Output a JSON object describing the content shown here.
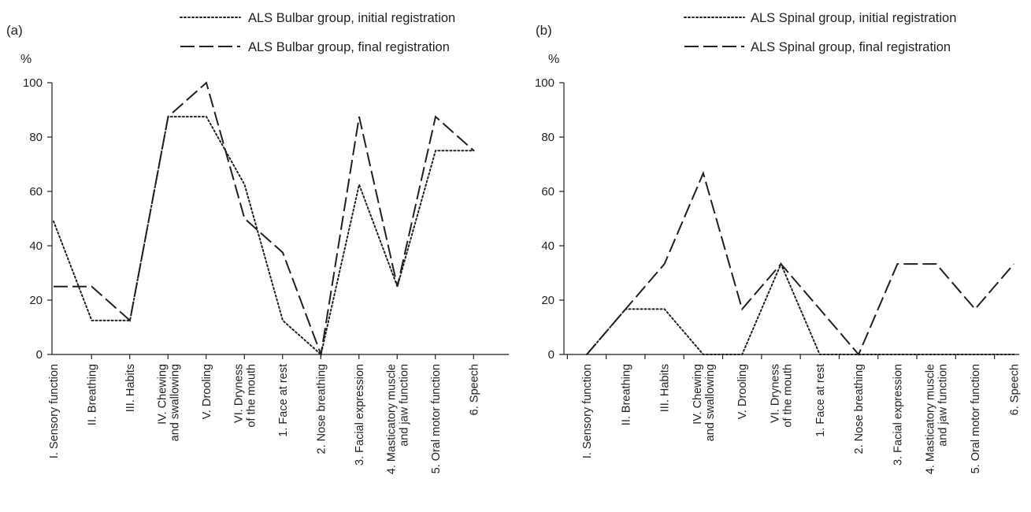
{
  "chart_data": [
    {
      "type": "line",
      "panel_label": "(a)",
      "unit_label": "%",
      "categories": [
        [
          "I. Sensory function"
        ],
        [
          "II. Breathing"
        ],
        [
          "III. Habits"
        ],
        [
          "IV. Chewing",
          "and swallowing"
        ],
        [
          "V. Drooling"
        ],
        [
          "VI. Dryness",
          "of the mouth"
        ],
        [
          "1. Face at rest"
        ],
        [
          "2. Nose breathing"
        ],
        [
          "3. Facial expression"
        ],
        [
          "4. Masticatory muscle",
          "and jaw function"
        ],
        [
          "5. Oral motor function"
        ],
        [
          "6. Speech"
        ]
      ],
      "ylim": [
        0,
        100
      ],
      "yticks": [
        0,
        20,
        40,
        60,
        80,
        100
      ],
      "series": [
        {
          "name": "ALS Bulbar group, initial registration",
          "style": "dotted",
          "values": [
            49,
            12.5,
            12.5,
            87.5,
            87.5,
            62.5,
            12.5,
            0,
            62.5,
            25,
            75,
            75
          ]
        },
        {
          "name": "ALS Bulbar group, final registration",
          "style": "dashed",
          "values": [
            25,
            25,
            12.5,
            87.5,
            100,
            50,
            37.5,
            0,
            87.5,
            25,
            87.5,
            75
          ]
        }
      ]
    },
    {
      "type": "line",
      "panel_label": "(b)",
      "unit_label": "%",
      "categories": [
        [
          "I. Sensory function"
        ],
        [
          "II. Breathing"
        ],
        [
          "III. Habits"
        ],
        [
          "IV. Chewing",
          "and swallowing"
        ],
        [
          "V. Drooling"
        ],
        [
          "VI. Dryness",
          "of the mouth"
        ],
        [
          "1. Face at rest"
        ],
        [
          "2. Nose breathing"
        ],
        [
          "3. Facial expression"
        ],
        [
          "4. Masticatory muscle",
          "and jaw function"
        ],
        [
          "5. Oral motor function"
        ],
        [
          "6. Speech"
        ]
      ],
      "ylim": [
        0,
        100
      ],
      "yticks": [
        0,
        20,
        40,
        60,
        80,
        100
      ],
      "series": [
        {
          "name": "ALS Spinal group, initial registration",
          "style": "dotted",
          "values": [
            0,
            16.7,
            16.7,
            0,
            0,
            33.3,
            0,
            0,
            0,
            0,
            0,
            0
          ]
        },
        {
          "name": "ALS Spinal group, final registration",
          "style": "dashed",
          "values": [
            0,
            16.7,
            33.3,
            66.7,
            16.7,
            33.3,
            16.7,
            0,
            33.3,
            33.3,
            16.7,
            33.3
          ]
        }
      ]
    }
  ]
}
